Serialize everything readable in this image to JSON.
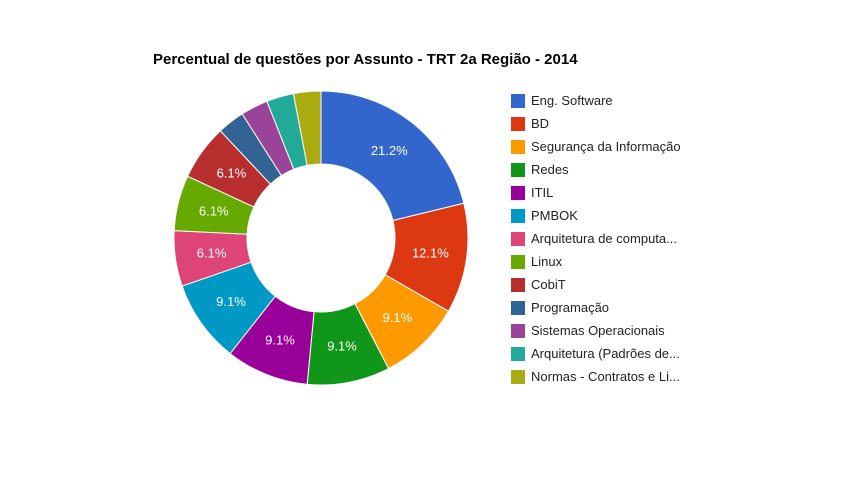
{
  "chart_data": {
    "type": "pie",
    "subtype": "donut",
    "title": "Percentual de questões por Assunto - TRT 2a Região - 2014",
    "legend_position": "right",
    "slices": [
      {
        "label": "Eng. Software",
        "value": 21.2,
        "display": "21.2%",
        "color": "#3366cc"
      },
      {
        "label": "BD",
        "value": 12.1,
        "display": "12.1%",
        "color": "#dc3912"
      },
      {
        "label": "Segurança da Informação",
        "value": 9.1,
        "display": "9.1%",
        "color": "#ff9900"
      },
      {
        "label": "Redes",
        "value": 9.1,
        "display": "9.1%",
        "color": "#109618"
      },
      {
        "label": "ITIL",
        "value": 9.1,
        "display": "9.1%",
        "color": "#990099"
      },
      {
        "label": "PMBOK",
        "value": 9.1,
        "display": "9.1%",
        "color": "#0099c6"
      },
      {
        "label": "Arquitetura de computa...",
        "value": 6.1,
        "display": "6.1%",
        "color": "#dd4477"
      },
      {
        "label": "Linux",
        "value": 6.1,
        "display": "6.1%",
        "color": "#66aa00"
      },
      {
        "label": "CobiT",
        "value": 6.1,
        "display": "6.1%",
        "color": "#b82e2e"
      },
      {
        "label": "Programação",
        "value": 3.0,
        "display": "",
        "color": "#316395"
      },
      {
        "label": "Sistemas Operacionais",
        "value": 3.0,
        "display": "",
        "color": "#994499"
      },
      {
        "label": "Arquitetura (Padrões de...",
        "value": 3.0,
        "display": "",
        "color": "#22aa99"
      },
      {
        "label": "Normas - Contratos e Li...",
        "value": 3.0,
        "display": "",
        "color": "#aaaa11"
      }
    ]
  }
}
